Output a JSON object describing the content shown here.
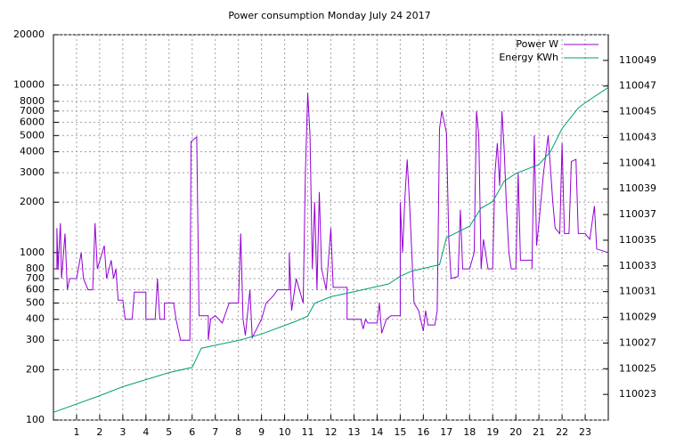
{
  "chart_data": {
    "type": "line",
    "title": "Power consumption Monday July 24 2017",
    "xlim": [
      0,
      24
    ],
    "xticks": [
      1,
      2,
      3,
      4,
      5,
      6,
      7,
      8,
      9,
      10,
      11,
      12,
      13,
      14,
      15,
      16,
      17,
      18,
      19,
      20,
      21,
      22,
      23
    ],
    "ylim": [
      100,
      20000
    ],
    "log_y": true,
    "yticks": [
      100,
      200,
      300,
      400,
      500,
      600,
      700,
      800,
      1000,
      2000,
      3000,
      4000,
      5000,
      6000,
      7000,
      8000,
      10000,
      20000
    ],
    "y2lim": [
      110021,
      110051
    ],
    "y2ticks": [
      110023,
      110025,
      110027,
      110029,
      110031,
      110033,
      110035,
      110037,
      110039,
      110041,
      110043,
      110045,
      110047,
      110049
    ],
    "grid": true,
    "legend": "top-right",
    "series": [
      {
        "name": "Power W",
        "color": "#9400d3",
        "x": [
          0,
          0.15,
          0.15,
          0.2,
          0.3,
          0.35,
          0.5,
          0.6,
          0.7,
          1.0,
          1.2,
          1.3,
          1.5,
          1.7,
          1.8,
          1.9,
          2.2,
          2.3,
          2.5,
          2.6,
          2.7,
          2.8,
          3.0,
          3.1,
          3.4,
          3.5,
          4.0,
          4.0,
          4.4,
          4.5,
          4.6,
          4.8,
          4.8,
          5.2,
          5.3,
          5.5,
          5.9,
          5.95,
          6.2,
          6.3,
          6.7,
          6.7,
          6.8,
          7.0,
          7.3,
          7.6,
          8.0,
          8.1,
          8.2,
          8.3,
          8.5,
          8.6,
          9.0,
          9.2,
          9.5,
          9.7,
          10.2,
          10.2,
          10.3,
          10.5,
          10.8,
          10.9,
          11.0,
          11.1,
          11.2,
          11.3,
          11.4,
          11.5,
          11.6,
          11.8,
          12.0,
          12.1,
          12.7,
          12.7,
          13.3,
          13.4,
          13.5,
          13.6,
          14.0,
          14.1,
          14.2,
          14.4,
          14.6,
          15.0,
          15.0,
          15.1,
          15.2,
          15.3,
          15.4,
          15.6,
          15.8,
          16.0,
          16.1,
          16.2,
          16.5,
          16.6,
          16.7,
          16.8,
          17.0,
          17.1,
          17.2,
          17.5,
          17.6,
          17.7,
          18.0,
          18.2,
          18.3,
          18.4,
          18.5,
          18.6,
          18.8,
          19.0,
          19.1,
          19.2,
          19.3,
          19.4,
          19.5,
          19.6,
          19.7,
          19.8,
          20.0,
          20.1,
          20.2,
          20.5,
          20.7,
          20.7,
          20.8,
          20.9,
          21.0,
          21.2,
          21.4,
          21.6,
          21.7,
          21.9,
          22.0,
          22.1,
          22.3,
          22.4,
          22.6,
          22.7,
          23.0,
          23.2,
          23.4,
          23.5,
          24
        ],
        "values": [
          800,
          800,
          1400,
          800,
          1500,
          700,
          1300,
          600,
          700,
          700,
          1000,
          700,
          600,
          600,
          1500,
          800,
          1100,
          700,
          900,
          700,
          800,
          520,
          520,
          400,
          400,
          580,
          580,
          400,
          400,
          700,
          400,
          400,
          500,
          500,
          400,
          300,
          300,
          4600,
          4900,
          420,
          420,
          300,
          400,
          420,
          380,
          500,
          500,
          1300,
          400,
          320,
          600,
          310,
          400,
          500,
          550,
          600,
          600,
          1000,
          450,
          700,
          500,
          3000,
          9000,
          5000,
          800,
          2000,
          600,
          2300,
          800,
          600,
          1400,
          620,
          620,
          400,
          400,
          350,
          400,
          380,
          380,
          500,
          330,
          400,
          420,
          420,
          2000,
          1000,
          2100,
          3600,
          2000,
          500,
          450,
          340,
          450,
          370,
          370,
          450,
          5500,
          7000,
          5200,
          1200,
          700,
          720,
          1800,
          800,
          800,
          1000,
          7000,
          5000,
          800,
          1200,
          800,
          800,
          3000,
          4500,
          2500,
          7000,
          4000,
          1800,
          1000,
          800,
          800,
          3000,
          900,
          900,
          900,
          800,
          5000,
          1100,
          1500,
          3000,
          5000,
          2000,
          1400,
          1300,
          4500,
          1300,
          1300,
          3500,
          3600,
          1300,
          1300,
          1200,
          1900,
          1050,
          1000
        ]
      },
      {
        "name": "Energy KWh",
        "color": "#009e73",
        "axis": "y2",
        "x": [
          0,
          2,
          3,
          5,
          6,
          6.4,
          8,
          9,
          10.5,
          11,
          11.3,
          12,
          13,
          14.5,
          15,
          15.5,
          16.7,
          17,
          18,
          18.5,
          19,
          19.5,
          20,
          21,
          21.5,
          22,
          22.7,
          23,
          24
        ],
        "values": [
          110021.6,
          110022.9,
          110023.6,
          110024.7,
          110025.1,
          110026.6,
          110027.2,
          110027.7,
          110028.7,
          110029.1,
          110030.1,
          110030.6,
          110031.0,
          110031.6,
          110032.2,
          110032.6,
          110033.1,
          110035.2,
          110036.1,
          110037.5,
          110038.0,
          110039.6,
          110040.2,
          110040.9,
          110041.9,
          110043.7,
          110045.3,
          110045.7,
          110046.9
        ]
      }
    ]
  }
}
